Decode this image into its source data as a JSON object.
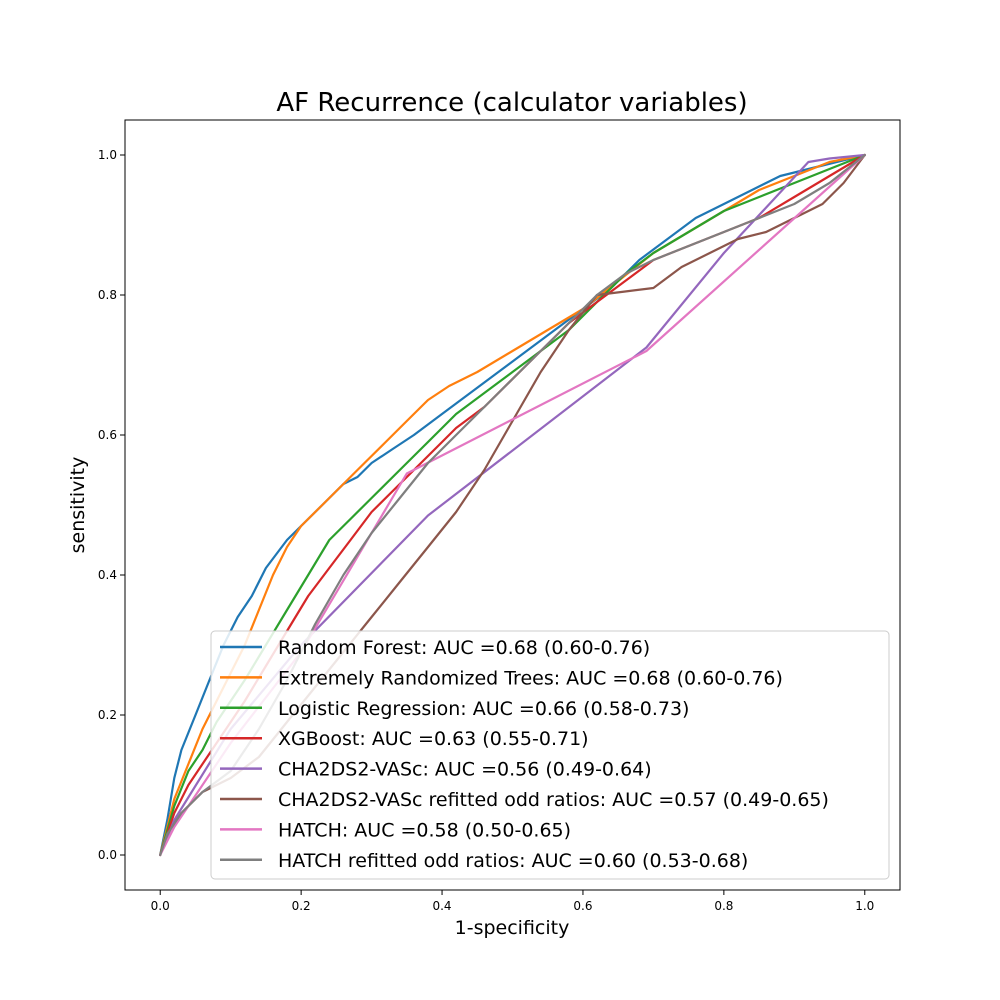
{
  "chart_data": {
    "type": "line",
    "title": "AF Recurrence (calculator variables)",
    "xlabel": "1-specificity",
    "ylabel": "sensitivity",
    "xlim": [
      -0.05,
      1.05
    ],
    "ylim": [
      -0.05,
      1.05
    ],
    "xticks": [
      0.0,
      0.2,
      0.4,
      0.6,
      0.8,
      1.0
    ],
    "yticks": [
      0.0,
      0.2,
      0.4,
      0.6,
      0.8,
      1.0
    ],
    "xtick_labels": [
      "0.0",
      "0.2",
      "0.4",
      "0.6",
      "0.8",
      "1.0"
    ],
    "ytick_labels": [
      "0.0",
      "0.2",
      "0.4",
      "0.6",
      "0.8",
      "1.0"
    ],
    "grid": false,
    "legend_position": "lower-right",
    "series": [
      {
        "name": "Random Forest: AUC =0.68 (0.60-0.76)",
        "color": "#1f77b4",
        "x": [
          0,
          0.01,
          0.02,
          0.03,
          0.05,
          0.07,
          0.09,
          0.11,
          0.13,
          0.15,
          0.18,
          0.2,
          0.23,
          0.26,
          0.28,
          0.3,
          0.33,
          0.36,
          0.4,
          0.44,
          0.48,
          0.52,
          0.56,
          0.6,
          0.64,
          0.68,
          0.72,
          0.76,
          0.8,
          0.84,
          0.88,
          0.92,
          0.96,
          1.0
        ],
        "y": [
          0,
          0.05,
          0.11,
          0.15,
          0.2,
          0.25,
          0.3,
          0.34,
          0.37,
          0.41,
          0.45,
          0.47,
          0.5,
          0.53,
          0.54,
          0.56,
          0.58,
          0.6,
          0.63,
          0.66,
          0.69,
          0.72,
          0.75,
          0.78,
          0.81,
          0.85,
          0.88,
          0.91,
          0.93,
          0.95,
          0.97,
          0.98,
          0.99,
          1.0
        ]
      },
      {
        "name": "Extremely Randomized Trees: AUC =0.68 (0.60-0.76)",
        "color": "#ff7f0e",
        "x": [
          0,
          0.01,
          0.02,
          0.04,
          0.06,
          0.08,
          0.1,
          0.12,
          0.14,
          0.16,
          0.18,
          0.2,
          0.23,
          0.26,
          0.29,
          0.32,
          0.35,
          0.38,
          0.41,
          0.45,
          0.5,
          0.55,
          0.6,
          0.65,
          0.7,
          0.75,
          0.8,
          0.85,
          0.9,
          0.95,
          1.0
        ],
        "y": [
          0,
          0.04,
          0.08,
          0.13,
          0.18,
          0.22,
          0.26,
          0.3,
          0.35,
          0.4,
          0.44,
          0.47,
          0.5,
          0.53,
          0.56,
          0.59,
          0.62,
          0.65,
          0.67,
          0.69,
          0.72,
          0.75,
          0.78,
          0.82,
          0.86,
          0.89,
          0.92,
          0.95,
          0.97,
          0.99,
          1.0
        ]
      },
      {
        "name": "Logistic Regression: AUC =0.66 (0.58-0.73)",
        "color": "#2ca02c",
        "x": [
          0,
          0.02,
          0.04,
          0.06,
          0.08,
          0.1,
          0.12,
          0.15,
          0.18,
          0.21,
          0.24,
          0.27,
          0.3,
          0.34,
          0.38,
          0.42,
          0.46,
          0.5,
          0.54,
          0.58,
          0.62,
          0.66,
          0.7,
          0.75,
          0.8,
          0.85,
          0.9,
          0.95,
          1.0
        ],
        "y": [
          0,
          0.07,
          0.12,
          0.15,
          0.19,
          0.22,
          0.25,
          0.3,
          0.35,
          0.4,
          0.45,
          0.48,
          0.51,
          0.55,
          0.59,
          0.63,
          0.66,
          0.69,
          0.72,
          0.75,
          0.79,
          0.83,
          0.86,
          0.89,
          0.92,
          0.94,
          0.96,
          0.98,
          1.0
        ]
      },
      {
        "name": "XGBoost: AUC =0.63 (0.55-0.71)",
        "color": "#d62728",
        "x": [
          0,
          0.02,
          0.04,
          0.06,
          0.08,
          0.1,
          0.12,
          0.15,
          0.18,
          0.21,
          0.24,
          0.27,
          0.3,
          0.34,
          0.38,
          0.42,
          0.46,
          0.5,
          0.54,
          0.58,
          0.62,
          0.66,
          0.7,
          0.75,
          0.8,
          0.85,
          0.9,
          0.95,
          1.0
        ],
        "y": [
          0,
          0.06,
          0.1,
          0.13,
          0.16,
          0.19,
          0.22,
          0.27,
          0.32,
          0.37,
          0.41,
          0.45,
          0.49,
          0.53,
          0.57,
          0.61,
          0.64,
          0.68,
          0.72,
          0.76,
          0.79,
          0.82,
          0.85,
          0.87,
          0.89,
          0.91,
          0.94,
          0.97,
          1.0
        ]
      },
      {
        "name": "CHA2DS2-VASc: AUC =0.56 (0.49-0.64)",
        "color": "#9467bd",
        "x": [
          0,
          0.02,
          0.1,
          0.2,
          0.38,
          0.69,
          0.8,
          0.92,
          0.95,
          1.0
        ],
        "y": [
          0,
          0.05,
          0.18,
          0.3,
          0.485,
          0.725,
          0.86,
          0.99,
          0.995,
          1.0
        ]
      },
      {
        "name": "CHA2DS2-VASc refitted odd ratios: AUC =0.57 (0.49-0.65)",
        "color": "#8c564b",
        "x": [
          0,
          0.01,
          0.03,
          0.06,
          0.1,
          0.14,
          0.18,
          0.22,
          0.26,
          0.3,
          0.34,
          0.38,
          0.42,
          0.46,
          0.5,
          0.54,
          0.58,
          0.62,
          0.66,
          0.7,
          0.74,
          0.78,
          0.82,
          0.86,
          0.9,
          0.94,
          0.97,
          1.0
        ],
        "y": [
          0,
          0.03,
          0.06,
          0.09,
          0.11,
          0.14,
          0.19,
          0.24,
          0.29,
          0.34,
          0.39,
          0.44,
          0.49,
          0.55,
          0.62,
          0.69,
          0.75,
          0.8,
          0.805,
          0.81,
          0.84,
          0.86,
          0.88,
          0.89,
          0.91,
          0.93,
          0.96,
          1.0
        ]
      },
      {
        "name": "HATCH: AUC =0.58 (0.50-0.65)",
        "color": "#e377c2",
        "x": [
          0,
          0.02,
          0.1,
          0.2,
          0.35,
          0.69,
          1.0
        ],
        "y": [
          0,
          0.04,
          0.16,
          0.29,
          0.545,
          0.72,
          1.0
        ]
      },
      {
        "name": "HATCH refitted odd ratios: AUC =0.60 (0.53-0.68)",
        "color": "#7f7f7f",
        "x": [
          0,
          0.01,
          0.03,
          0.06,
          0.1,
          0.14,
          0.18,
          0.22,
          0.26,
          0.3,
          0.34,
          0.38,
          0.42,
          0.46,
          0.5,
          0.54,
          0.58,
          0.62,
          0.66,
          0.7,
          0.75,
          0.8,
          0.85,
          0.9,
          0.95,
          1.0
        ],
        "y": [
          0,
          0.03,
          0.06,
          0.09,
          0.12,
          0.18,
          0.25,
          0.33,
          0.4,
          0.46,
          0.51,
          0.56,
          0.6,
          0.64,
          0.68,
          0.72,
          0.76,
          0.8,
          0.83,
          0.85,
          0.87,
          0.89,
          0.91,
          0.93,
          0.96,
          1.0
        ]
      }
    ]
  }
}
